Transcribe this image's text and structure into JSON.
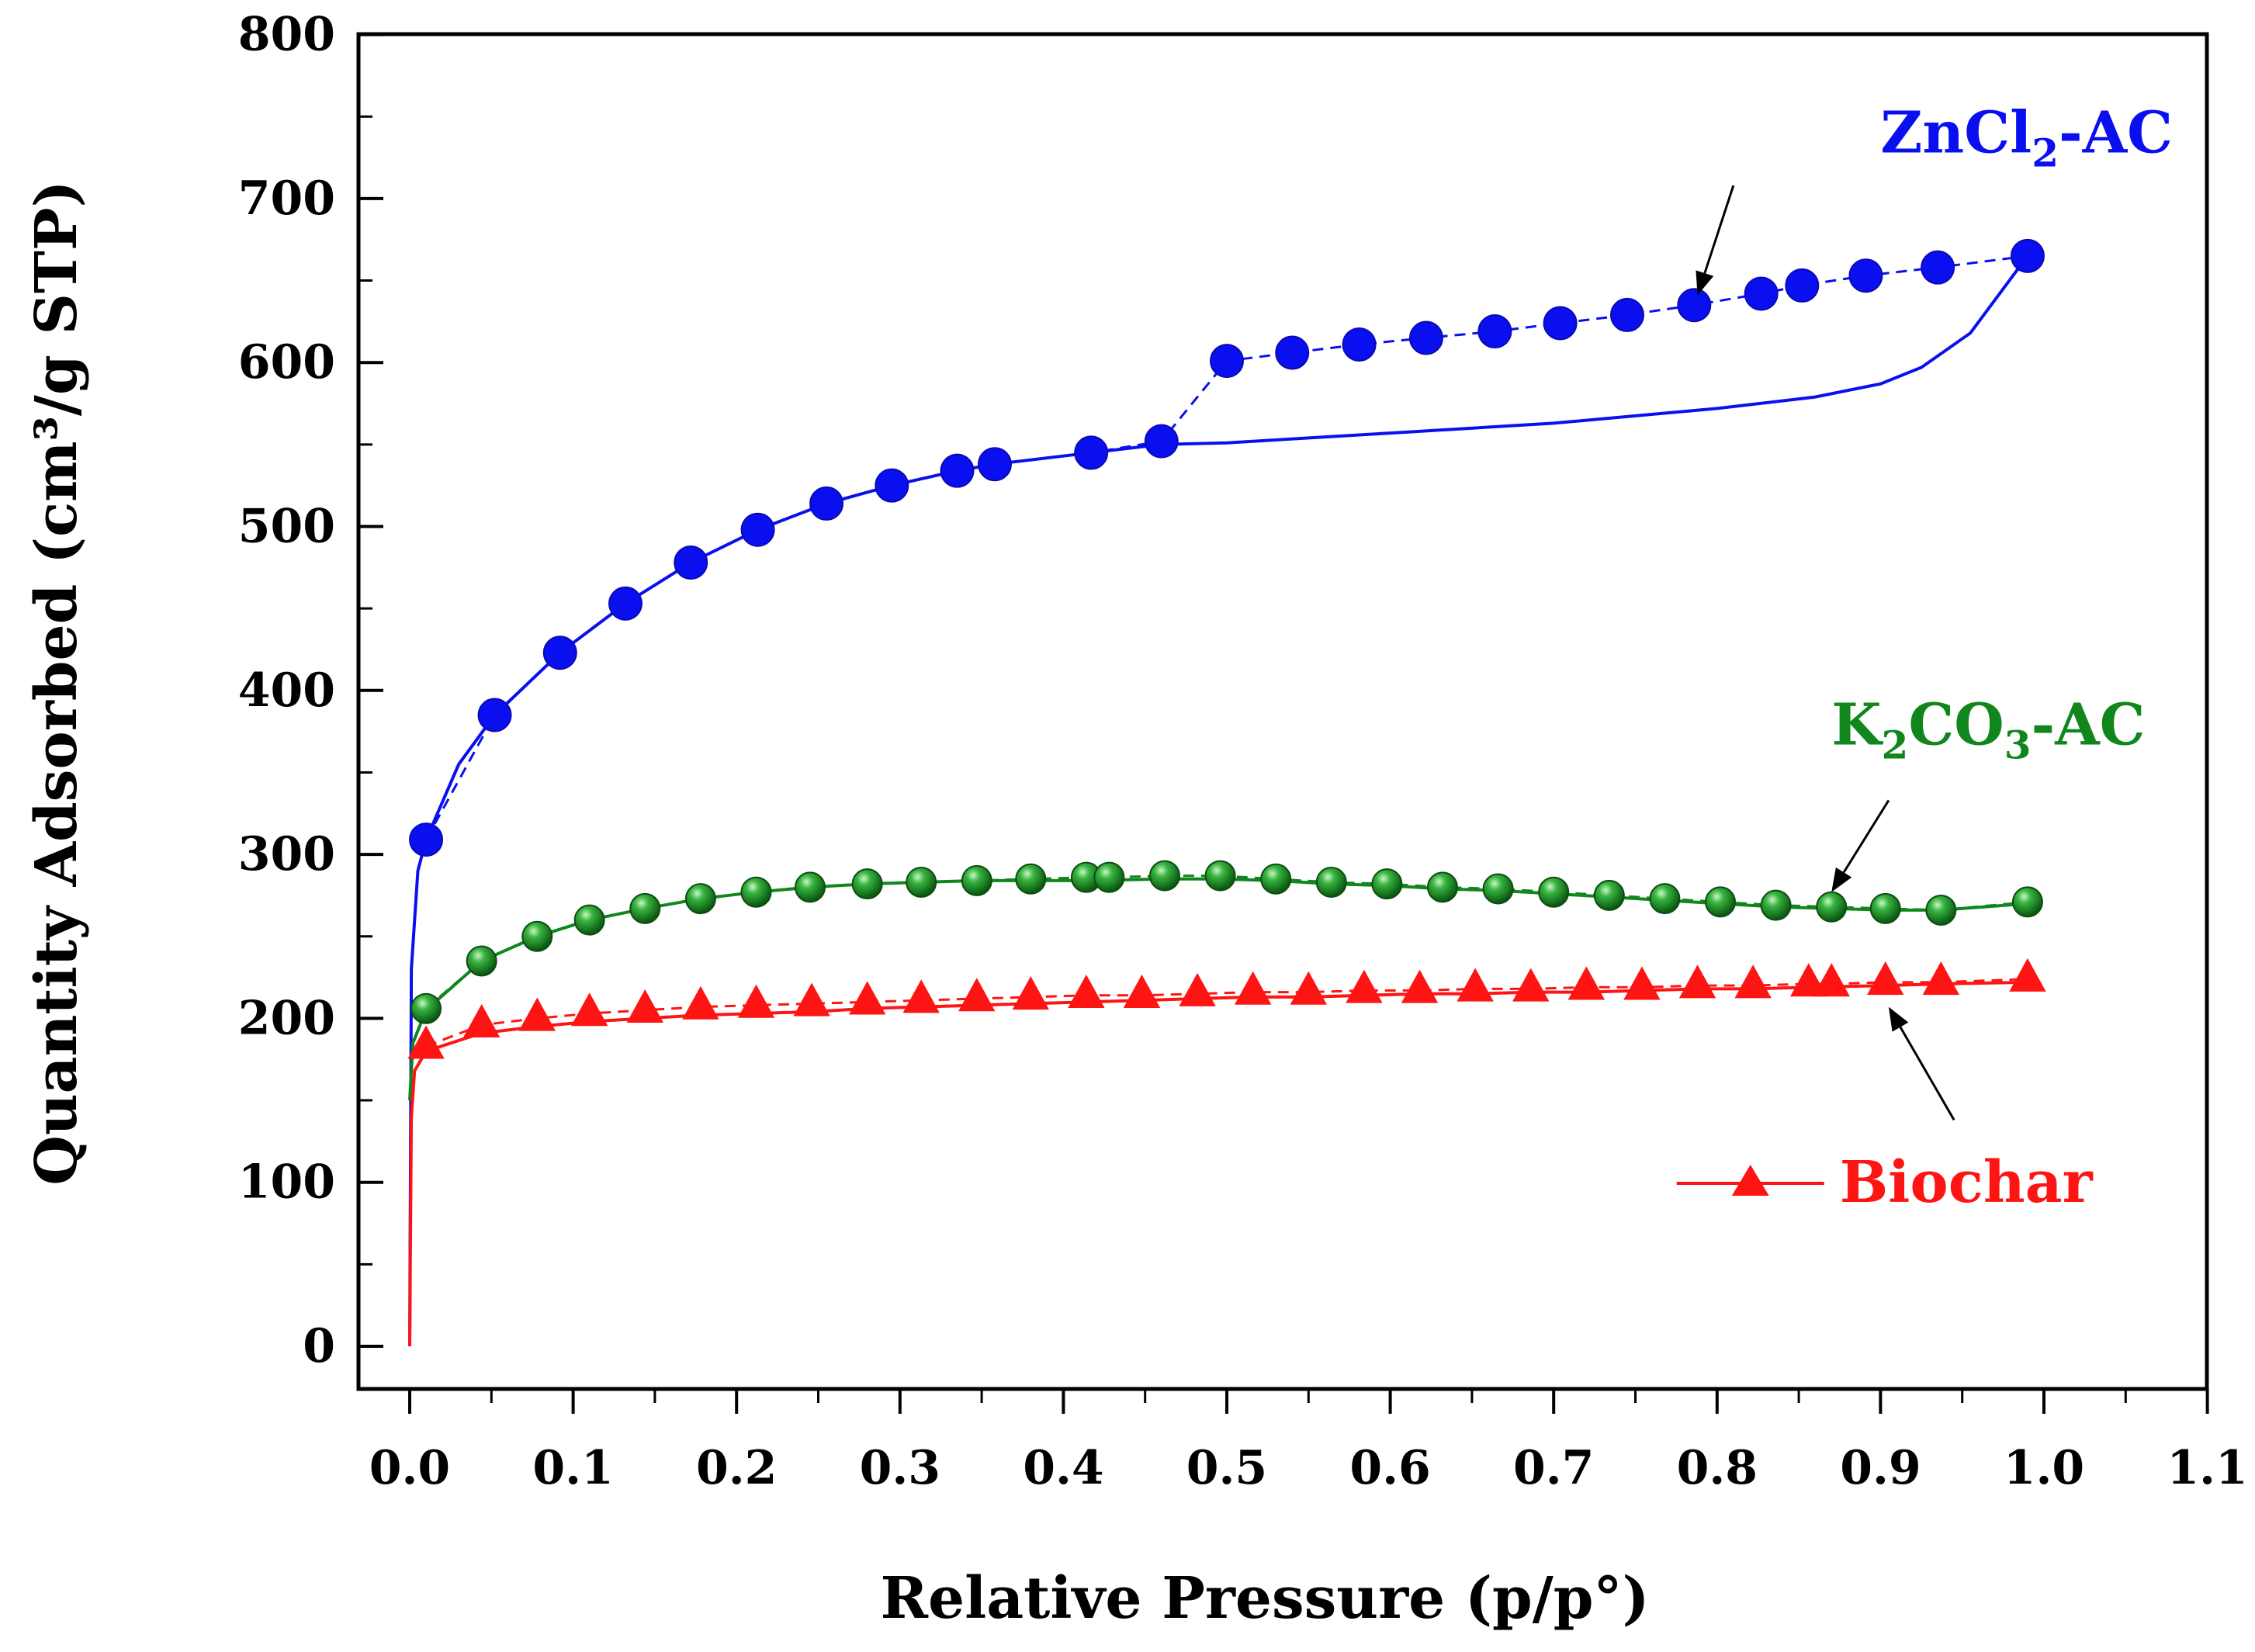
{
  "chart_data": {
    "type": "line",
    "xlabel": "Relative Pressure (p/p°)",
    "ylabel": "Quantity Adsorbed (cm³/g STP)",
    "xlim": [
      -0.03,
      1.1
    ],
    "ylim": [
      -25,
      800
    ],
    "xticks": [
      0.0,
      0.1,
      0.2,
      0.3,
      0.4,
      0.5,
      0.6,
      0.7,
      0.8,
      0.9,
      1.0,
      1.1
    ],
    "xtick_labels": [
      "0.0",
      "0.1",
      "0.2",
      "0.3",
      "0.4",
      "0.5",
      "0.6",
      "0.7",
      "0.8",
      "0.9",
      "1.0",
      "1.1"
    ],
    "yticks": [
      0,
      100,
      200,
      300,
      400,
      500,
      600,
      700,
      800
    ],
    "ytick_labels": [
      "0",
      "100",
      "200",
      "300",
      "400",
      "500",
      "600",
      "700",
      "800"
    ],
    "grid": false,
    "series": [
      {
        "name": "ZnCl2-AC",
        "color": "#0a0ff0",
        "marker": "circle",
        "line_style": "dashed",
        "points": [
          [
            0.01,
            309
          ],
          [
            0.052,
            385
          ],
          [
            0.092,
            423
          ],
          [
            0.132,
            453
          ],
          [
            0.172,
            478
          ],
          [
            0.213,
            498
          ],
          [
            0.255,
            514
          ],
          [
            0.295,
            525
          ],
          [
            0.335,
            534
          ],
          [
            0.358,
            538
          ],
          [
            0.417,
            545
          ],
          [
            0.46,
            552
          ],
          [
            0.5,
            601
          ],
          [
            0.54,
            606
          ],
          [
            0.581,
            611
          ],
          [
            0.622,
            615
          ],
          [
            0.664,
            619
          ],
          [
            0.704,
            624
          ],
          [
            0.745,
            629
          ],
          [
            0.786,
            635
          ],
          [
            0.827,
            642
          ],
          [
            0.852,
            647
          ],
          [
            0.891,
            653
          ],
          [
            0.935,
            658
          ],
          [
            0.99,
            665
          ]
        ],
        "line_points": [
          [
            0.0,
            0
          ],
          [
            0.001,
            230
          ],
          [
            0.005,
            290
          ],
          [
            0.01,
            309
          ],
          [
            0.03,
            355
          ],
          [
            0.052,
            385
          ],
          [
            0.092,
            423
          ],
          [
            0.132,
            453
          ],
          [
            0.172,
            478
          ],
          [
            0.213,
            498
          ],
          [
            0.255,
            514
          ],
          [
            0.295,
            525
          ],
          [
            0.335,
            534
          ],
          [
            0.358,
            538
          ],
          [
            0.417,
            545
          ],
          [
            0.46,
            550
          ],
          [
            0.5,
            551
          ],
          [
            0.6,
            557
          ],
          [
            0.7,
            563
          ],
          [
            0.8,
            572
          ],
          [
            0.86,
            579
          ],
          [
            0.9,
            587
          ],
          [
            0.925,
            597
          ],
          [
            0.955,
            618
          ],
          [
            0.99,
            665
          ]
        ]
      },
      {
        "name": "K2CO3-AC",
        "color": "#11861d",
        "marker": "sphere",
        "line_style": "dashed",
        "points": [
          [
            0.01,
            206
          ],
          [
            0.044,
            235
          ],
          [
            0.078,
            250
          ],
          [
            0.11,
            260
          ],
          [
            0.144,
            267
          ],
          [
            0.178,
            273
          ],
          [
            0.212,
            277
          ],
          [
            0.245,
            280
          ],
          [
            0.28,
            282
          ],
          [
            0.313,
            283
          ],
          [
            0.347,
            284
          ],
          [
            0.38,
            285
          ],
          [
            0.414,
            286
          ],
          [
            0.428,
            286
          ],
          [
            0.462,
            287
          ],
          [
            0.496,
            287
          ],
          [
            0.53,
            285
          ],
          [
            0.564,
            283
          ],
          [
            0.598,
            282
          ],
          [
            0.632,
            280
          ],
          [
            0.666,
            279
          ],
          [
            0.7,
            277
          ],
          [
            0.734,
            275
          ],
          [
            0.768,
            273
          ],
          [
            0.802,
            271
          ],
          [
            0.836,
            269
          ],
          [
            0.87,
            268
          ],
          [
            0.903,
            267
          ],
          [
            0.937,
            266
          ],
          [
            0.99,
            271
          ]
        ],
        "line_points": [
          [
            0.0,
            150
          ],
          [
            0.002,
            185
          ],
          [
            0.01,
            205
          ],
          [
            0.044,
            235
          ],
          [
            0.078,
            250
          ],
          [
            0.11,
            260
          ],
          [
            0.144,
            267
          ],
          [
            0.178,
            273
          ],
          [
            0.212,
            277
          ],
          [
            0.245,
            280
          ],
          [
            0.28,
            282
          ],
          [
            0.313,
            283
          ],
          [
            0.347,
            284
          ],
          [
            0.38,
            284
          ],
          [
            0.414,
            284
          ],
          [
            0.462,
            285
          ],
          [
            0.496,
            285
          ],
          [
            0.53,
            284
          ],
          [
            0.564,
            282
          ],
          [
            0.598,
            281
          ],
          [
            0.632,
            279
          ],
          [
            0.666,
            278
          ],
          [
            0.7,
            276
          ],
          [
            0.734,
            274
          ],
          [
            0.768,
            272
          ],
          [
            0.802,
            270
          ],
          [
            0.836,
            268
          ],
          [
            0.87,
            267
          ],
          [
            0.903,
            266
          ],
          [
            0.937,
            266
          ],
          [
            0.99,
            270
          ]
        ]
      },
      {
        "name": "Biochar",
        "color": "#ff1414",
        "marker": "triangle",
        "line_style": "dashed",
        "points": [
          [
            0.01,
            183
          ],
          [
            0.044,
            196
          ],
          [
            0.078,
            200
          ],
          [
            0.11,
            203
          ],
          [
            0.144,
            205
          ],
          [
            0.178,
            207
          ],
          [
            0.212,
            208
          ],
          [
            0.246,
            209
          ],
          [
            0.28,
            210
          ],
          [
            0.313,
            211
          ],
          [
            0.347,
            212
          ],
          [
            0.38,
            213
          ],
          [
            0.414,
            214
          ],
          [
            0.448,
            214
          ],
          [
            0.482,
            215
          ],
          [
            0.516,
            216
          ],
          [
            0.55,
            216
          ],
          [
            0.584,
            217
          ],
          [
            0.618,
            217
          ],
          [
            0.652,
            218
          ],
          [
            0.686,
            218
          ],
          [
            0.72,
            219
          ],
          [
            0.754,
            219
          ],
          [
            0.788,
            220
          ],
          [
            0.822,
            220
          ],
          [
            0.856,
            221
          ],
          [
            0.87,
            221
          ],
          [
            0.903,
            222
          ],
          [
            0.937,
            222
          ],
          [
            0.99,
            224
          ]
        ],
        "line_points": [
          [
            0.0,
            0
          ],
          [
            0.001,
            140
          ],
          [
            0.003,
            168
          ],
          [
            0.01,
            180
          ],
          [
            0.044,
            191
          ],
          [
            0.078,
            195
          ],
          [
            0.11,
            198
          ],
          [
            0.144,
            200
          ],
          [
            0.178,
            202
          ],
          [
            0.212,
            203
          ],
          [
            0.246,
            204
          ],
          [
            0.28,
            206
          ],
          [
            0.313,
            207
          ],
          [
            0.347,
            208
          ],
          [
            0.38,
            209
          ],
          [
            0.414,
            210
          ],
          [
            0.448,
            211
          ],
          [
            0.482,
            212
          ],
          [
            0.516,
            213
          ],
          [
            0.55,
            213
          ],
          [
            0.584,
            214
          ],
          [
            0.618,
            215
          ],
          [
            0.652,
            215
          ],
          [
            0.686,
            216
          ],
          [
            0.72,
            216
          ],
          [
            0.754,
            217
          ],
          [
            0.788,
            218
          ],
          [
            0.822,
            218
          ],
          [
            0.856,
            219
          ],
          [
            0.903,
            220
          ],
          [
            0.937,
            221
          ],
          [
            0.99,
            222
          ]
        ]
      }
    ],
    "annotations": [
      {
        "name": "zncl2-label",
        "parts": [
          {
            "text": "ZnCl"
          },
          {
            "text": "2",
            "sub": true
          },
          {
            "text": "-AC"
          }
        ],
        "color": "#0a0ff0",
        "anchor": [
          0.9,
          728
        ],
        "arrow_from": [
          0.81,
          708
        ],
        "arrow_to": [
          0.788,
          641
        ]
      },
      {
        "name": "k2co3-label",
        "parts": [
          {
            "text": "K"
          },
          {
            "text": "2",
            "sub": true
          },
          {
            "text": "CO"
          },
          {
            "text": "3",
            "sub": true
          },
          {
            "text": "-AC"
          }
        ],
        "color": "#11861d",
        "anchor": [
          0.87,
          367
        ],
        "arrow_from": [
          0.905,
          333
        ],
        "arrow_to": [
          0.87,
          277
        ]
      },
      {
        "name": "biochar-label",
        "parts": [
          {
            "text": "Biochar"
          }
        ],
        "color": "#ff1414",
        "anchor": [
          0.875,
          88
        ],
        "legend_marker": true,
        "arrow_from": [
          0.945,
          138
        ],
        "arrow_to": [
          0.905,
          207
        ]
      }
    ]
  }
}
